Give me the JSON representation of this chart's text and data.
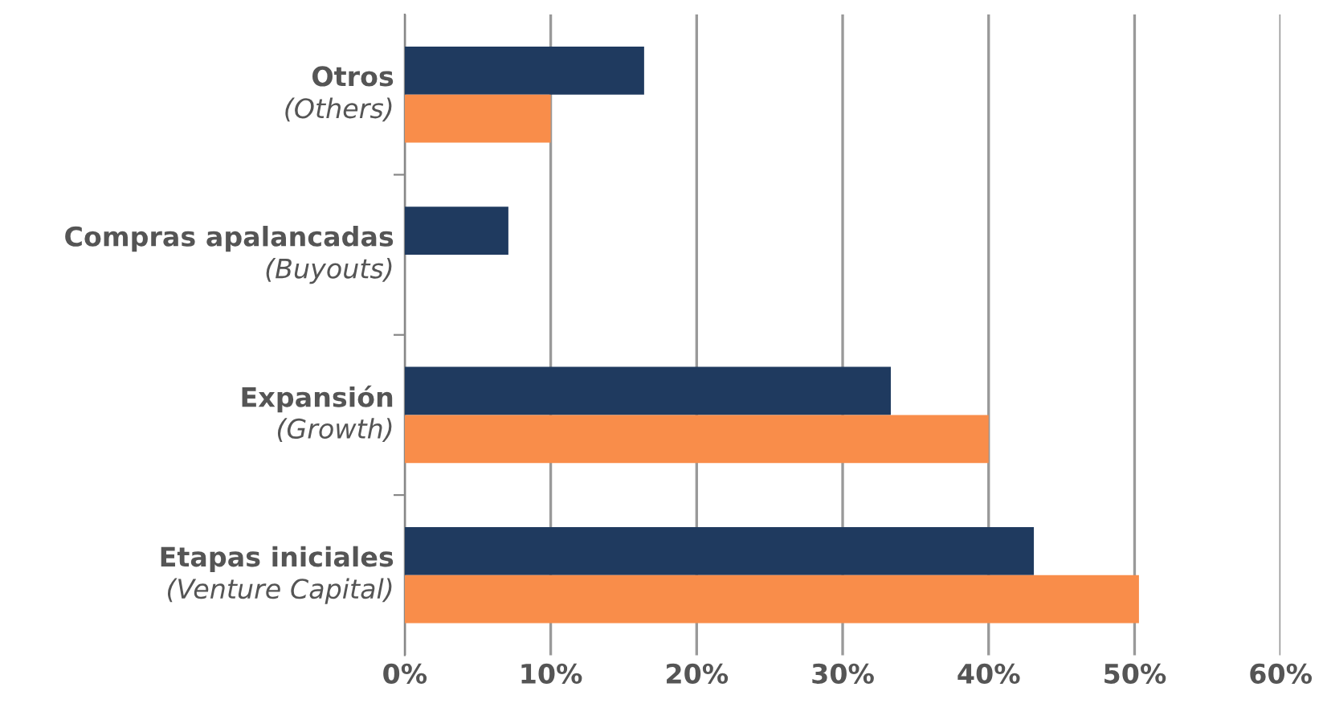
{
  "chart_data": {
    "type": "bar",
    "orientation": "horizontal",
    "categories": [
      "Otros\n(Others)",
      "Compras apalancadas\n(Buyouts)",
      "Expansión\n(Growth)",
      "Etapas iniciales\n(Venture Capital)"
    ],
    "series": [
      {
        "color": "#1f3a5f",
        "values": [
          16.4,
          7.1,
          33.3,
          43.1
        ]
      },
      {
        "color": "#f98d4a",
        "values": [
          10,
          null,
          40,
          50.3
        ]
      }
    ],
    "xlim": [
      0,
      60
    ],
    "xticks": [
      {
        "value": 0,
        "label": "0%"
      },
      {
        "value": 10,
        "label": "10%"
      },
      {
        "value": 20,
        "label": "20%"
      },
      {
        "value": 30,
        "label": "30%"
      },
      {
        "value": 40,
        "label": "40%"
      },
      {
        "value": 50,
        "label": "50%"
      },
      {
        "value": 60,
        "label": "60%"
      }
    ],
    "grid": "x",
    "legend": false
  }
}
